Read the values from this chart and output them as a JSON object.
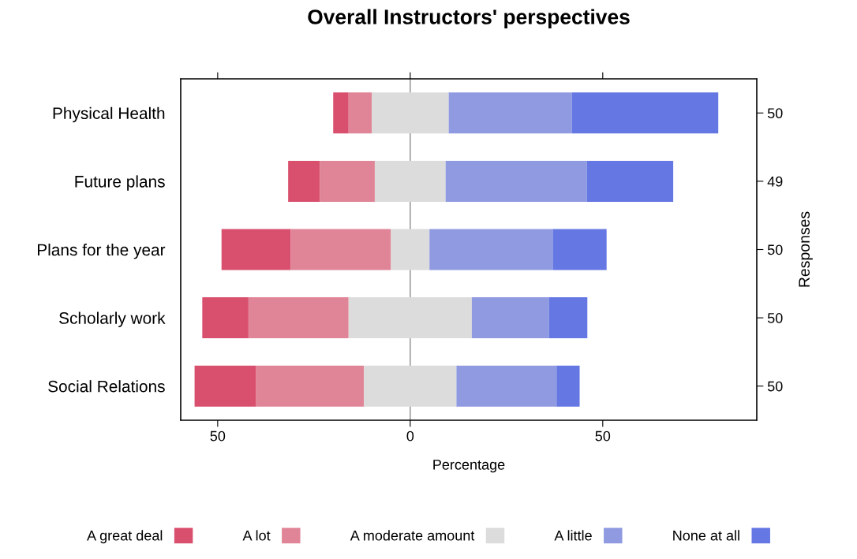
{
  "chart_data": {
    "type": "bar",
    "orientation": "horizontal",
    "title": "Overall Instructors' perspectives",
    "xlabel": "Percentage",
    "y2label": "Responses",
    "categories": [
      "Physical Health",
      "Future plans",
      "Plans for the year",
      "Scholarly work",
      "Social Relations"
    ],
    "y2_categories": [
      "50",
      "49",
      "50",
      "50",
      "50"
    ],
    "series": [
      {
        "name": "A great deal",
        "color": "#d9506f",
        "base": [
          -20,
          -31.7,
          -49,
          -54,
          -56
        ],
        "values": [
          4,
          8.2,
          18,
          12,
          16
        ]
      },
      {
        "name": "A lot",
        "color": "#e08497",
        "base": [
          -16,
          -23.5,
          -31,
          -42,
          -40
        ],
        "values": [
          6,
          14.3,
          26,
          26,
          28
        ]
      },
      {
        "name": "A moderate amount",
        "color": "#dcdcdc",
        "base": [
          -10,
          -9.2,
          -5,
          -16,
          -12
        ],
        "values": [
          20,
          18.4,
          10,
          32,
          24
        ]
      },
      {
        "name": "A little",
        "color": "#8f9ae0",
        "base": [
          10,
          9.2,
          5,
          16,
          12
        ],
        "values": [
          32,
          36.7,
          32,
          20,
          26
        ]
      },
      {
        "name": "None at all",
        "color": "#6577e2",
        "base": [
          42,
          45.9,
          37,
          36,
          38
        ],
        "values": [
          38,
          22.4,
          14,
          10,
          6
        ]
      }
    ],
    "xlim": [
      -59.6,
      90
    ],
    "xticks": [
      {
        "value": -50,
        "label": "50"
      },
      0,
      50
    ],
    "ref_lines": [
      {
        "axis": "x",
        "value": 0,
        "color": "#a0a0a0"
      }
    ],
    "grid": false,
    "legend": "bottom"
  }
}
